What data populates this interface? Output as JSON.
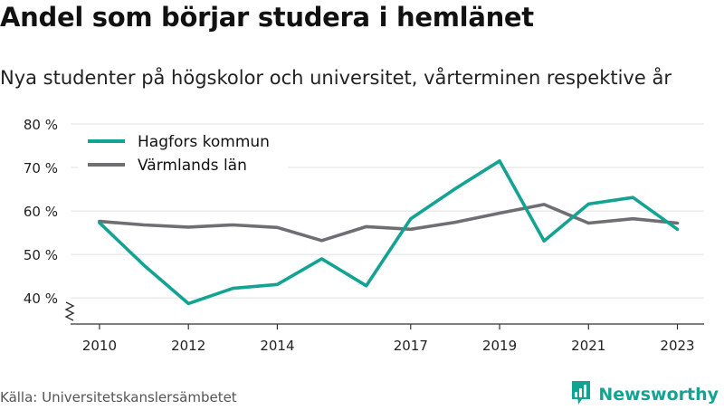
{
  "title": "Andel som börjar studera i hemlänet",
  "subtitle": "Nya studenter på högskolor och universitet, vårterminen respektive år",
  "source": "Källa: Universitetskanslersämbetet",
  "brand": {
    "name": "Newsworthy",
    "icon": "newsworthy-logo-icon"
  },
  "colors": {
    "hagfors": "#12a393",
    "varmland": "#6e6e73",
    "grid": "#e0e0e0",
    "axis": "#333333",
    "brand": "#12a393"
  },
  "chart_data": {
    "type": "line",
    "y_tick_labels": [
      "40 %",
      "50 %",
      "60 %",
      "70 %",
      "80 %"
    ],
    "y_ticks": [
      40,
      50,
      60,
      70,
      80
    ],
    "ylim": [
      34,
      80
    ],
    "y_axis_break": true,
    "x_tick_labels": [
      "2010",
      "2012",
      "2014",
      "2017",
      "2019",
      "2021",
      "2023"
    ],
    "x_ticks": [
      2010,
      2012,
      2014,
      2017,
      2019,
      2021,
      2023
    ],
    "xlim": [
      2009.35,
      2023.6
    ],
    "grid": true,
    "legend_position": "top-left",
    "series": [
      {
        "name": "Hagfors kommun",
        "color_key": "hagfors",
        "points": [
          [
            2010,
            57.3
          ],
          [
            2011,
            47.5
          ],
          [
            2012,
            38.7
          ],
          [
            2013,
            42.2
          ],
          [
            2014,
            43.1
          ],
          [
            2015,
            49.0
          ],
          [
            2016,
            42.8
          ],
          [
            2017,
            58.2
          ],
          [
            2018,
            65.1
          ],
          [
            2019,
            71.5
          ],
          [
            2020,
            53.1
          ],
          [
            2021,
            61.6
          ],
          [
            2022,
            63.1
          ],
          [
            2023,
            55.8
          ]
        ]
      },
      {
        "name": "Värmlands län",
        "color_key": "varmland",
        "points": [
          [
            2010,
            57.6
          ],
          [
            2011,
            56.8
          ],
          [
            2012,
            56.3
          ],
          [
            2013,
            56.8
          ],
          [
            2014,
            56.2
          ],
          [
            2015,
            53.2
          ],
          [
            2016,
            56.4
          ],
          [
            2017,
            55.8
          ],
          [
            2018,
            57.4
          ],
          [
            2019,
            59.5
          ],
          [
            2020,
            61.5
          ],
          [
            2021,
            57.2
          ],
          [
            2022,
            58.2
          ],
          [
            2023,
            57.2
          ]
        ]
      }
    ]
  }
}
